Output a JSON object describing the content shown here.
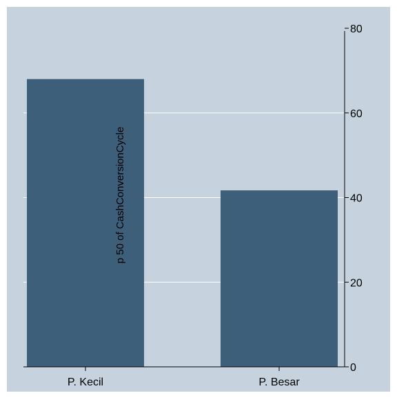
{
  "colors": {
    "background": "#c6d2dd",
    "bar": "#3e5f79",
    "grid": "#ffffff",
    "axis": "#000000"
  },
  "chart_data": {
    "type": "bar",
    "categories": [
      "P. Kecil",
      "P. Besar"
    ],
    "values": [
      68,
      41.7
    ],
    "ylabel": "p 50 of CashConversionCycle",
    "ylim": [
      0,
      80
    ],
    "yticks": [
      "0",
      "20",
      "40",
      "60",
      "80"
    ],
    "grid": true,
    "y_axis_side": "right"
  }
}
